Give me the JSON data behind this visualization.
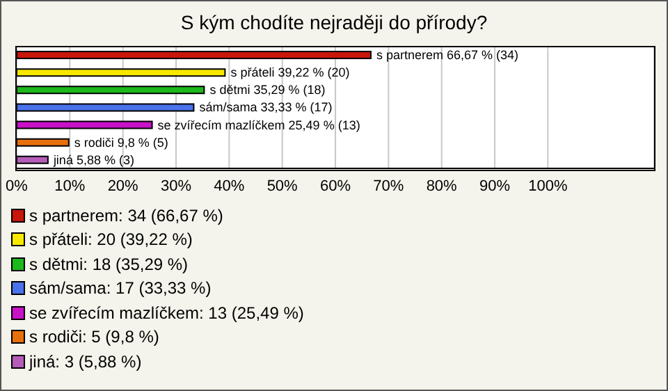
{
  "chart_data": {
    "type": "bar",
    "orientation": "horizontal",
    "title": "S kým chodíte nejraději do přírody?",
    "categories": [
      "s partnerem",
      "s přáteli",
      "s dětmi",
      "sám/sama",
      "se zvířecím mazlíčkem",
      "s rodiči",
      "jiná"
    ],
    "values": [
      66.67,
      39.22,
      35.29,
      33.33,
      25.49,
      9.8,
      5.88
    ],
    "colors": [
      "#c8160a",
      "#f8e800",
      "#1cb81c",
      "#4a72ea",
      "#c812c8",
      "#e8700c",
      "#b45cb8"
    ],
    "value_labels": [
      "66,67 % (34)",
      "39,22 % (20)",
      "35,29 % (18)",
      "33,33 % (17)",
      "25,49 % (13)",
      "9,8 % (5)",
      "5,88 % (3)"
    ],
    "xlim": [
      0,
      120
    ],
    "xticks": [
      {
        "value": 0,
        "label": "0%"
      },
      {
        "value": 10,
        "label": "10%"
      },
      {
        "value": 20,
        "label": "20%"
      },
      {
        "value": 30,
        "label": "30%"
      },
      {
        "value": 40,
        "label": "40%"
      },
      {
        "value": 50,
        "label": "50%"
      },
      {
        "value": 60,
        "label": "60%"
      },
      {
        "value": 70,
        "label": "70%"
      },
      {
        "value": 80,
        "label": "80%"
      },
      {
        "value": 90,
        "label": "90%"
      },
      {
        "value": 100,
        "label": "100%"
      }
    ],
    "grid": "x",
    "tick_labels": "x",
    "annotations": [
      "s partnerem: 34 (66,67 %)",
      "s přáteli: 20 (39,22 %)",
      "s dětmi: 18 (35,29 %)",
      "sám/sama: 17 (33,33 %)",
      "se zvířecím mazlíčkem: 13 (25,49 %)",
      "s rodiči: 5 (9,8 %)",
      "jiná: 3 (5,88 %)"
    ]
  }
}
